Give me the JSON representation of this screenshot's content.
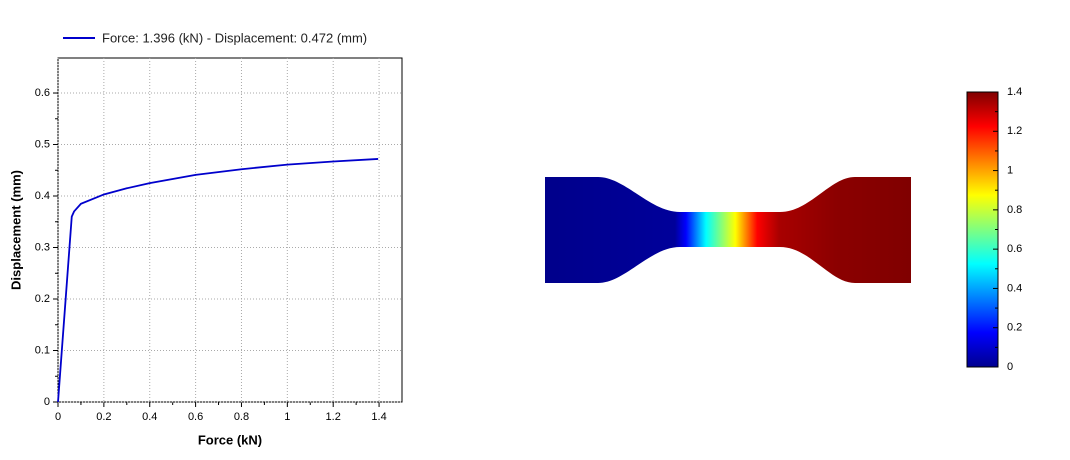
{
  "chart_data": [
    {
      "type": "line",
      "x_label": "Force (kN)",
      "y_label": "Displacement (mm)",
      "x": [
        0,
        0.06,
        0.07,
        0.1,
        0.2,
        0.3,
        0.4,
        0.6,
        0.8,
        1.0,
        1.2,
        1.396
      ],
      "series": [
        {
          "name": "Force: 1.396 (kN) - Displacement: 0.472 (mm)",
          "color": "#0000cc",
          "values": [
            0,
            0.36,
            0.37,
            0.385,
            0.403,
            0.415,
            0.425,
            0.441,
            0.452,
            0.461,
            0.467,
            0.472
          ]
        }
      ],
      "xlim": [
        0,
        1.5
      ],
      "xticks": [
        0,
        0.2,
        0.4,
        0.6,
        0.8,
        1,
        1.2,
        1.4
      ],
      "ylim": [
        0,
        0.668
      ],
      "yticks": [
        0,
        0.1,
        0.2,
        0.3,
        0.4,
        0.5,
        0.6
      ],
      "grid": true
    },
    {
      "type": "colorbar",
      "ylim": [
        0,
        1.4
      ],
      "yticks": [
        0,
        0.2,
        0.4,
        0.6,
        0.8,
        1,
        1.2,
        1.4
      ]
    }
  ]
}
